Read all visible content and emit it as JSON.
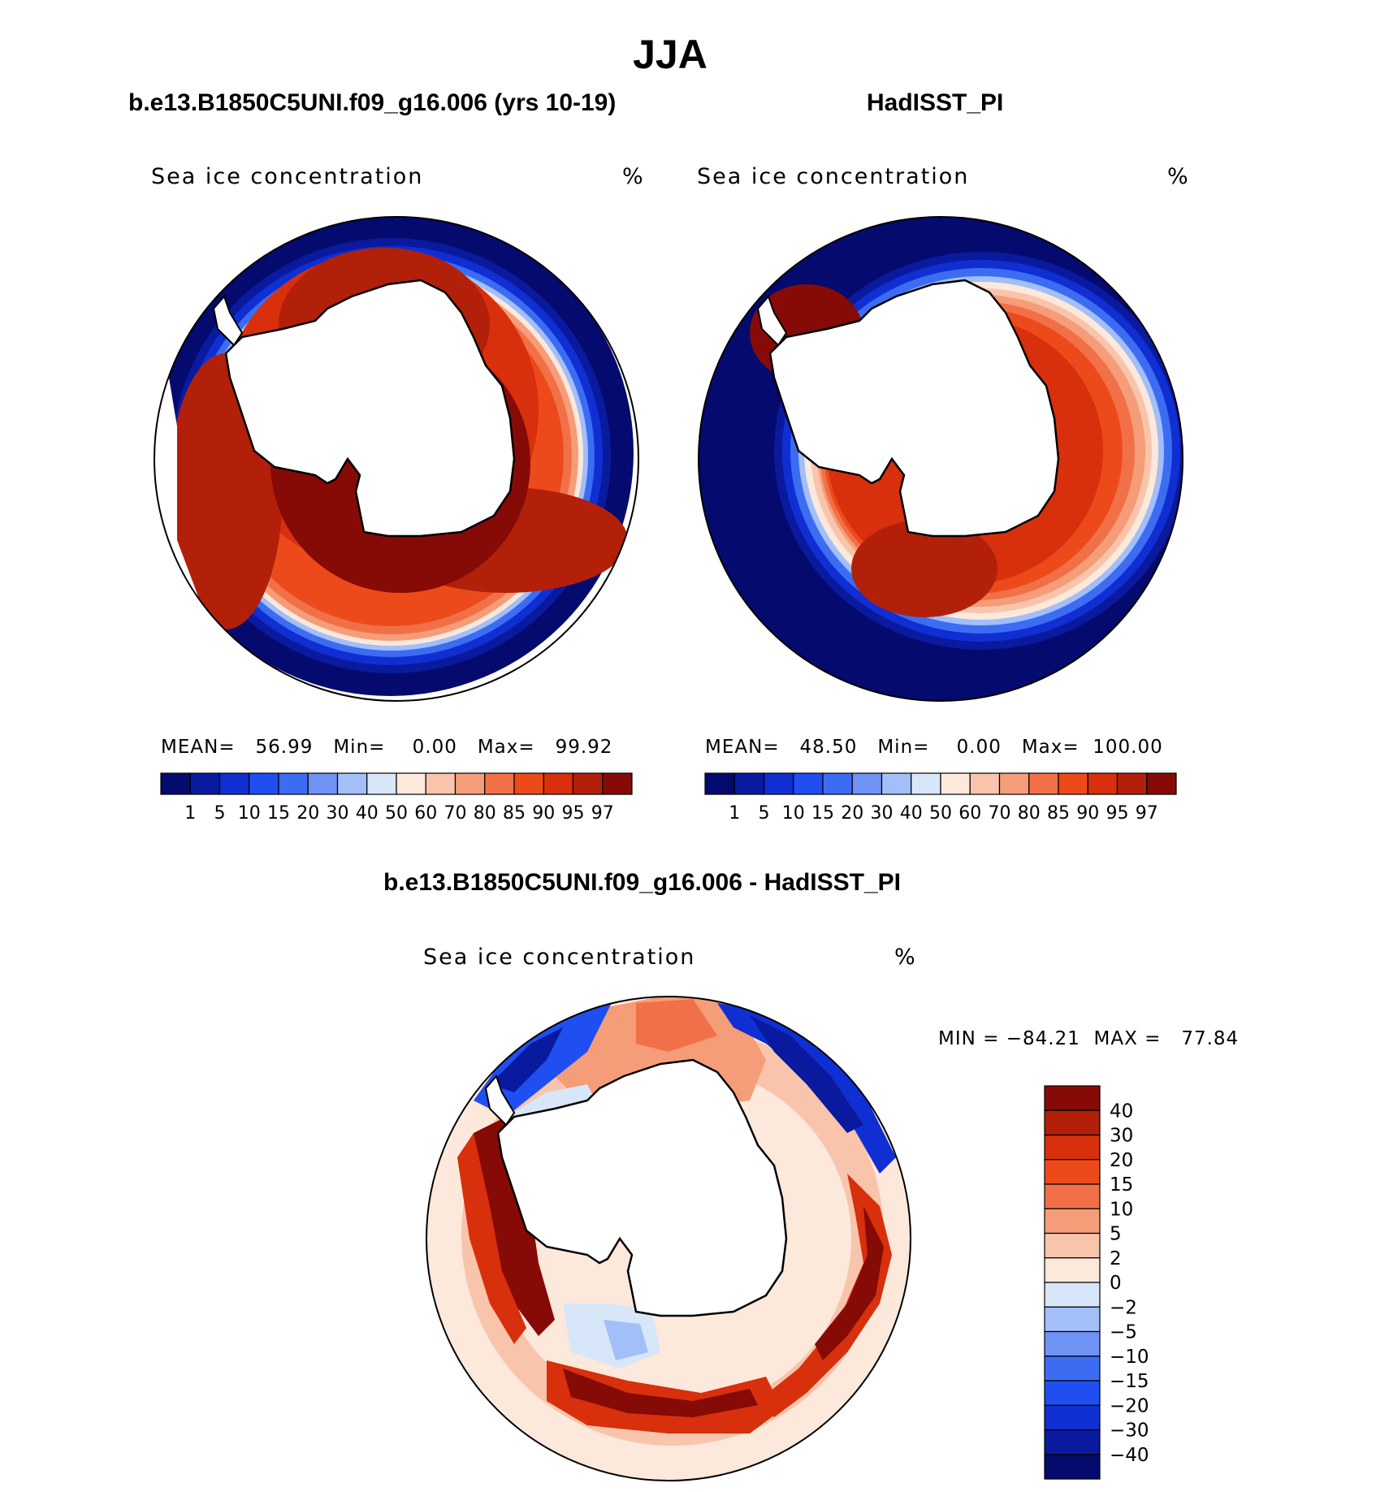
{
  "title": "JJA",
  "panels": [
    {
      "title": "b.e13.B1850C5UNI.f09_g16.006 (yrs 10-19)",
      "label": "Sea ice concentration",
      "units": "%",
      "stats": {
        "mean_label": "MEAN=",
        "mean": "56.99",
        "min_label": "Min=",
        "min": "0.00",
        "max_label": "Max=",
        "max": "99.92"
      }
    },
    {
      "title": "HadISST_PI",
      "label": "Sea ice concentration",
      "units": "%",
      "stats": {
        "mean_label": "MEAN=",
        "mean": "48.50",
        "min_label": "Min=",
        "min": "0.00",
        "max_label": "Max=",
        "max": "100.00"
      }
    }
  ],
  "diff_panel": {
    "title": "b.e13.B1850C5UNI.f09_g16.006 - HadISST_PI",
    "label": "Sea ice concentration",
    "units": "%",
    "min_label": "MIN =",
    "min": "−84.21",
    "max_label": "MAX =",
    "max": "77.84"
  },
  "chart_data": [
    {
      "type": "heatmap",
      "projection": "south-polar-stereographic",
      "field": "Sea ice concentration (%)",
      "season": "JJA",
      "source": "b.e13.B1850C5UNI.f09_g16.006 (yrs 10-19)",
      "mean": 56.99,
      "min": 0.0,
      "max": 99.92,
      "colorbar_levels": [
        1,
        5,
        10,
        15,
        20,
        30,
        40,
        50,
        60,
        70,
        80,
        85,
        90,
        95,
        97
      ],
      "colorbar_colors": [
        "#050a6e",
        "#0a1a9e",
        "#0f2fd2",
        "#1f4ff0",
        "#3c6cf2",
        "#6e93f5",
        "#a3bff8",
        "#d8e6fa",
        "#fde8dc",
        "#f8c5ac",
        "#f59d78",
        "#f27047",
        "#ed4a1c",
        "#d82f0c",
        "#b2200a",
        "#860a06"
      ]
    },
    {
      "type": "heatmap",
      "projection": "south-polar-stereographic",
      "field": "Sea ice concentration (%)",
      "season": "JJA",
      "source": "HadISST_PI",
      "mean": 48.5,
      "min": 0.0,
      "max": 100.0,
      "colorbar_levels": [
        1,
        5,
        10,
        15,
        20,
        30,
        40,
        50,
        60,
        70,
        80,
        85,
        90,
        95,
        97
      ],
      "colorbar_colors": [
        "#050a6e",
        "#0a1a9e",
        "#0f2fd2",
        "#1f4ff0",
        "#3c6cf2",
        "#6e93f5",
        "#a3bff8",
        "#d8e6fa",
        "#fde8dc",
        "#f8c5ac",
        "#f59d78",
        "#f27047",
        "#ed4a1c",
        "#d82f0c",
        "#b2200a",
        "#860a06"
      ]
    },
    {
      "type": "heatmap",
      "projection": "south-polar-stereographic",
      "field": "Sea ice concentration difference (%)",
      "season": "JJA",
      "source": "b.e13.B1850C5UNI.f09_g16.006 - HadISST_PI",
      "min": -84.21,
      "max": 77.84,
      "colorbar_levels": [
        "40",
        "30",
        "20",
        "15",
        "10",
        "5",
        "2",
        "0",
        "−2",
        "−5",
        "−10",
        "−15",
        "−20",
        "−30",
        "−40"
      ],
      "colorbar_colors": [
        "#860a06",
        "#b2200a",
        "#d82f0c",
        "#ed4a1c",
        "#f27047",
        "#f59d78",
        "#f8c5ac",
        "#fde8dc",
        "#d8e6fa",
        "#a3bff8",
        "#6e93f5",
        "#3c6cf2",
        "#1f4ff0",
        "#0f2fd2",
        "#0a1a9e",
        "#050a6e"
      ]
    }
  ]
}
